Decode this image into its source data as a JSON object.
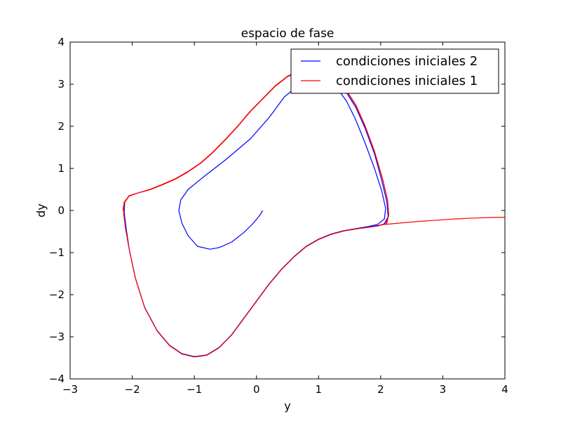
{
  "chart_data": {
    "type": "line",
    "title": "espacio de fase",
    "xlabel": "y",
    "ylabel": "dy",
    "xlim": [
      -3,
      4
    ],
    "ylim": [
      -4,
      4
    ],
    "xticks": [
      -3,
      -2,
      -1,
      0,
      1,
      2,
      3,
      4
    ],
    "yticks": [
      -4,
      -3,
      -2,
      -1,
      0,
      1,
      2,
      3,
      4
    ],
    "xtick_labels": [
      "−3",
      "−2",
      "−1",
      "0",
      "1",
      "2",
      "3",
      "4"
    ],
    "ytick_labels": [
      "−4",
      "−3",
      "−2",
      "−1",
      "0",
      "1",
      "2",
      "3",
      "4"
    ],
    "grid": false,
    "legend_position": "top-right",
    "series": [
      {
        "name": "condiciones iniciales 2",
        "color": "#0000ff",
        "points": [
          [
            0.1,
            0.0
          ],
          [
            0.05,
            -0.12
          ],
          [
            -0.05,
            -0.3
          ],
          [
            -0.2,
            -0.52
          ],
          [
            -0.4,
            -0.75
          ],
          [
            -0.6,
            -0.88
          ],
          [
            -0.75,
            -0.92
          ],
          [
            -0.95,
            -0.85
          ],
          [
            -1.1,
            -0.6
          ],
          [
            -1.2,
            -0.3
          ],
          [
            -1.25,
            0.0
          ],
          [
            -1.22,
            0.25
          ],
          [
            -1.1,
            0.5
          ],
          [
            -0.85,
            0.8
          ],
          [
            -0.5,
            1.2
          ],
          [
            -0.1,
            1.7
          ],
          [
            0.2,
            2.2
          ],
          [
            0.45,
            2.7
          ],
          [
            0.7,
            3.0
          ],
          [
            0.95,
            3.1
          ],
          [
            1.15,
            3.05
          ],
          [
            1.3,
            2.9
          ],
          [
            1.45,
            2.6
          ],
          [
            1.6,
            2.15
          ],
          [
            1.75,
            1.6
          ],
          [
            1.9,
            1.0
          ],
          [
            2.02,
            0.45
          ],
          [
            2.08,
            0.05
          ],
          [
            2.06,
            -0.2
          ],
          [
            1.95,
            -0.33
          ],
          [
            1.8,
            -0.38
          ],
          [
            1.6,
            -0.43
          ],
          [
            1.4,
            -0.48
          ],
          [
            1.2,
            -0.56
          ],
          [
            1.0,
            -0.68
          ],
          [
            0.8,
            -0.85
          ],
          [
            0.6,
            -1.1
          ],
          [
            0.4,
            -1.4
          ],
          [
            0.2,
            -1.75
          ],
          [
            0.0,
            -2.15
          ],
          [
            -0.2,
            -2.55
          ],
          [
            -0.4,
            -2.95
          ],
          [
            -0.6,
            -3.25
          ],
          [
            -0.8,
            -3.43
          ],
          [
            -1.0,
            -3.47
          ],
          [
            -1.2,
            -3.4
          ],
          [
            -1.4,
            -3.2
          ],
          [
            -1.6,
            -2.85
          ],
          [
            -1.8,
            -2.3
          ],
          [
            -1.95,
            -1.6
          ],
          [
            -2.05,
            -0.9
          ],
          [
            -2.1,
            -0.4
          ],
          [
            -2.13,
            -0.05
          ],
          [
            -2.12,
            0.2
          ],
          [
            -2.05,
            0.35
          ],
          [
            -1.9,
            0.42
          ],
          [
            -1.7,
            0.5
          ],
          [
            -1.5,
            0.62
          ],
          [
            -1.3,
            0.75
          ],
          [
            -1.1,
            0.92
          ],
          [
            -0.9,
            1.12
          ],
          [
            -0.7,
            1.38
          ],
          [
            -0.5,
            1.68
          ],
          [
            -0.3,
            2.0
          ],
          [
            -0.1,
            2.35
          ],
          [
            0.1,
            2.65
          ],
          [
            0.3,
            2.95
          ],
          [
            0.5,
            3.18
          ],
          [
            0.7,
            3.3
          ],
          [
            0.9,
            3.3
          ],
          [
            1.1,
            3.22
          ],
          [
            1.3,
            3.05
          ],
          [
            1.45,
            2.8
          ],
          [
            1.6,
            2.45
          ],
          [
            1.75,
            1.95
          ],
          [
            1.9,
            1.35
          ],
          [
            2.02,
            0.7
          ],
          [
            2.1,
            0.2
          ],
          [
            2.12,
            -0.15
          ],
          [
            2.05,
            -0.33
          ],
          [
            1.9,
            -0.37
          ],
          [
            1.7,
            -0.41
          ],
          [
            1.5,
            -0.46
          ]
        ]
      },
      {
        "name": "condiciones iniciales 1",
        "color": "#ff0000",
        "points": [
          [
            -2.15,
            0.0
          ],
          [
            -2.13,
            0.2
          ],
          [
            -2.05,
            0.35
          ],
          [
            -1.9,
            0.42
          ],
          [
            -1.7,
            0.5
          ],
          [
            -1.5,
            0.62
          ],
          [
            -1.3,
            0.75
          ],
          [
            -1.1,
            0.92
          ],
          [
            -0.9,
            1.12
          ],
          [
            -0.7,
            1.38
          ],
          [
            -0.5,
            1.68
          ],
          [
            -0.3,
            2.0
          ],
          [
            -0.1,
            2.35
          ],
          [
            0.1,
            2.65
          ],
          [
            0.3,
            2.95
          ],
          [
            0.5,
            3.18
          ],
          [
            0.7,
            3.32
          ],
          [
            0.9,
            3.33
          ],
          [
            1.1,
            3.24
          ],
          [
            1.3,
            3.08
          ],
          [
            1.45,
            2.84
          ],
          [
            1.6,
            2.5
          ],
          [
            1.75,
            2.0
          ],
          [
            1.9,
            1.4
          ],
          [
            2.03,
            0.75
          ],
          [
            2.11,
            0.25
          ],
          [
            2.13,
            -0.12
          ],
          [
            2.08,
            -0.32
          ],
          [
            1.95,
            -0.37
          ],
          [
            1.8,
            -0.4
          ],
          [
            1.6,
            -0.44
          ],
          [
            1.4,
            -0.49
          ],
          [
            1.2,
            -0.57
          ],
          [
            1.0,
            -0.69
          ],
          [
            0.8,
            -0.86
          ],
          [
            0.6,
            -1.11
          ],
          [
            0.4,
            -1.41
          ],
          [
            0.2,
            -1.76
          ],
          [
            0.0,
            -2.16
          ],
          [
            -0.2,
            -2.56
          ],
          [
            -0.4,
            -2.96
          ],
          [
            -0.6,
            -3.26
          ],
          [
            -0.8,
            -3.44
          ],
          [
            -1.0,
            -3.48
          ],
          [
            -1.2,
            -3.41
          ],
          [
            -1.4,
            -3.21
          ],
          [
            -1.6,
            -2.86
          ],
          [
            -1.8,
            -2.31
          ],
          [
            -1.95,
            -1.61
          ],
          [
            -2.05,
            -0.91
          ],
          [
            -2.11,
            -0.41
          ],
          [
            -2.14,
            -0.06
          ],
          [
            -2.13,
            0.18
          ],
          [
            -2.05,
            0.34
          ],
          [
            -1.9,
            0.42
          ],
          [
            -1.7,
            0.51
          ],
          [
            -1.5,
            0.63
          ],
          [
            -1.3,
            0.76
          ],
          [
            -1.1,
            0.93
          ],
          [
            -0.9,
            1.13
          ],
          [
            -0.7,
            1.39
          ],
          [
            -0.5,
            1.69
          ],
          [
            -0.3,
            2.01
          ],
          [
            -0.1,
            2.36
          ],
          [
            0.1,
            2.66
          ],
          [
            0.3,
            2.96
          ],
          [
            0.5,
            3.19
          ],
          [
            0.7,
            3.33
          ],
          [
            0.9,
            3.34
          ],
          [
            1.1,
            3.25
          ],
          [
            1.3,
            3.09
          ],
          [
            1.45,
            2.85
          ],
          [
            1.6,
            2.51
          ],
          [
            1.75,
            2.01
          ],
          [
            1.9,
            1.41
          ],
          [
            2.03,
            0.76
          ],
          [
            2.11,
            0.26
          ],
          [
            2.13,
            -0.1
          ],
          [
            2.1,
            -0.3
          ],
          [
            2.0,
            -0.34
          ],
          [
            2.3,
            -0.3
          ],
          [
            2.6,
            -0.26
          ],
          [
            2.9,
            -0.23
          ],
          [
            3.2,
            -0.2
          ],
          [
            3.5,
            -0.18
          ],
          [
            3.8,
            -0.165
          ],
          [
            4.0,
            -0.16
          ]
        ]
      }
    ]
  }
}
